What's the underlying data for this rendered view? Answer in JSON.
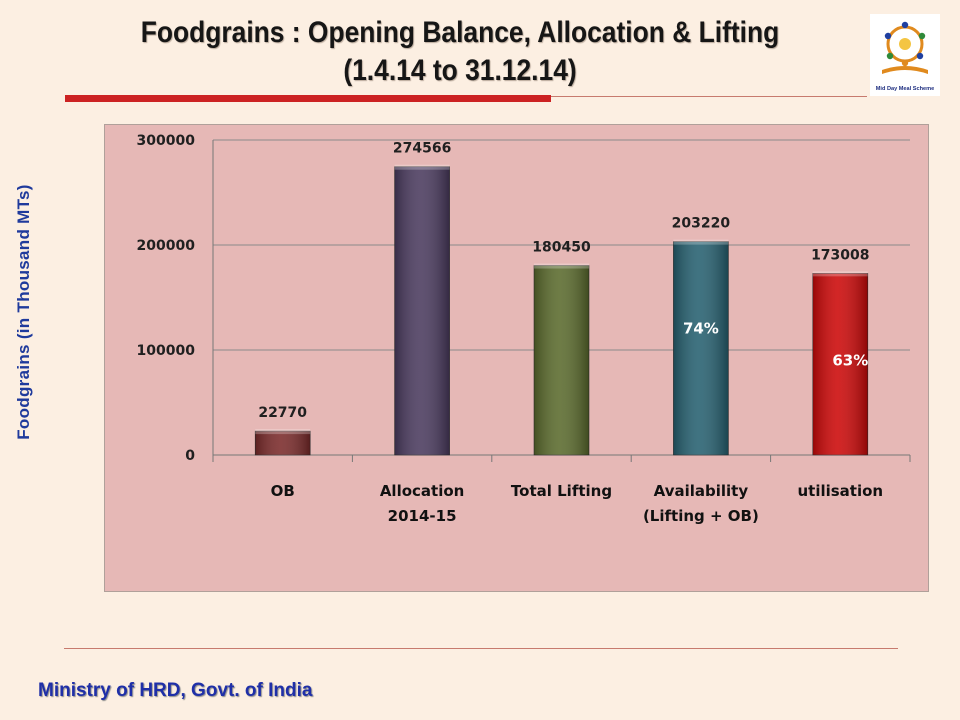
{
  "slide": {
    "title_line1": "Foodgrains : Opening Balance, Allocation & Lifting",
    "title_line2": "(1.4.14 to 31.12.14)",
    "footer": "Ministry of HRD, Govt. of India",
    "logo_icon": "mid-day-meal-scheme-logo",
    "logo_text": "Mid Day Meal Scheme",
    "accent_color": "#cc2222",
    "footer_color": "#1f2fa8"
  },
  "chart_data": {
    "type": "bar",
    "title": "",
    "xlabel": "",
    "ylabel": "Foodgrains (in Thousand MTs)",
    "ylim": [
      0,
      300000
    ],
    "yticks": [
      0,
      100000,
      200000,
      300000
    ],
    "grid": true,
    "legend": "none",
    "categories": [
      [
        "OB"
      ],
      [
        "Allocation",
        "2014-15"
      ],
      [
        "Total Lifting"
      ],
      [
        "Availability",
        "(Lifting + OB)"
      ],
      [
        "utilisation"
      ]
    ],
    "values": [
      22770,
      274566,
      180450,
      203220,
      173008
    ],
    "bar_colors": [
      "#7a2a2a",
      "#4a3a5e",
      "#5a6a2c",
      "#266070",
      "#cc0808"
    ],
    "annotations": [
      "",
      "",
      "",
      "74%",
      "63%"
    ]
  }
}
